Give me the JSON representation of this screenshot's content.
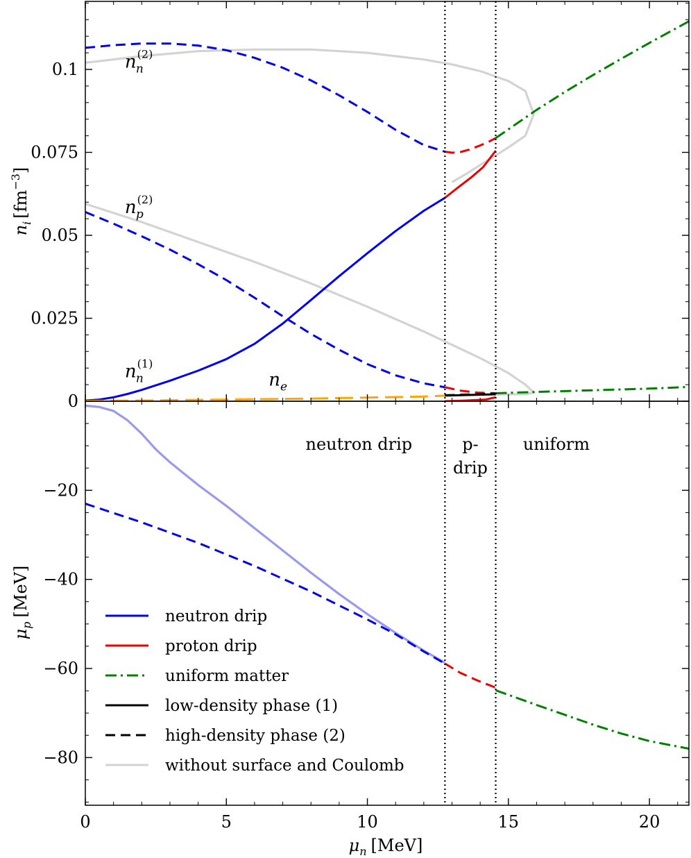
{
  "chart_data": [
    {
      "type": "line",
      "panel": "top",
      "ylabel": "n_i [fm^-3]",
      "ylabel_main": "n",
      "ylabel_sub": "i",
      "ylabel_units": "[fm",
      "ylabel_exp": "−3",
      "ylabel_close": "]",
      "xlim": [
        0,
        21.4
      ],
      "ylim": [
        0,
        0.1205
      ],
      "yticks": [
        0,
        0.025,
        0.05,
        0.075,
        0.1
      ],
      "ytick_labels": [
        "0",
        "0.025",
        "0.05",
        "0.075",
        "0.1"
      ],
      "vlines": [
        12.75,
        14.55
      ],
      "annotations": [
        {
          "id": "nn2",
          "main": "n",
          "sub": "n",
          "sup": "(2)",
          "x": 1.4,
          "y": 0.1005
        },
        {
          "id": "np2",
          "main": "n",
          "sub": "p",
          "sup": "(2)",
          "x": 1.4,
          "y": 0.0567
        },
        {
          "id": "nn1",
          "main": "n",
          "sub": "n",
          "sup": "(1)",
          "x": 1.4,
          "y": 0.0072
        },
        {
          "id": "ne",
          "main": "n",
          "sub": "e",
          "sup": "",
          "x": 6.5,
          "y": 0.0047
        }
      ],
      "series": [
        {
          "name": "n_n^(2) without surface and Coulomb",
          "color": "#d3d3d3",
          "dash": "solid",
          "x": [
            0,
            2,
            4,
            6,
            8,
            10,
            12,
            13,
            14,
            15,
            15.6,
            15.9,
            15.6,
            15,
            14.5,
            14,
            13.5,
            13
          ],
          "y": [
            0.102,
            0.104,
            0.1055,
            0.106,
            0.106,
            0.105,
            0.103,
            0.1015,
            0.0995,
            0.0965,
            0.0935,
            0.0865,
            0.08,
            0.0765,
            0.0738,
            0.0712,
            0.0685,
            0.066
          ]
        },
        {
          "name": "n_p^(2) without surface and Coulomb",
          "color": "#d3d3d3",
          "dash": "solid",
          "x": [
            0,
            2,
            4,
            6,
            8,
            10,
            12,
            14,
            15,
            15.6,
            15.9,
            15.6,
            15,
            14.5
          ],
          "y": [
            0.0595,
            0.054,
            0.048,
            0.042,
            0.0355,
            0.0285,
            0.021,
            0.013,
            0.0085,
            0.005,
            0.0026,
            0.0021,
            0.0021,
            0.002
          ]
        },
        {
          "name": "n_n^(2) neutron drip",
          "color": "#0000ee",
          "dash": "dashed",
          "x": [
            0,
            1,
            2,
            3,
            4,
            5,
            6,
            7,
            8,
            9,
            10,
            11,
            12,
            12.75
          ],
          "y": [
            0.1065,
            0.1073,
            0.1078,
            0.1078,
            0.1072,
            0.1058,
            0.1035,
            0.1005,
            0.0967,
            0.0922,
            0.0872,
            0.0818,
            0.0772,
            0.0752
          ]
        },
        {
          "name": "n_n^(2) proton drip",
          "color": "#ee0000",
          "dash": "dashed",
          "x": [
            12.75,
            13.0,
            13.3,
            13.6,
            14.0,
            14.3,
            14.55
          ],
          "y": [
            0.0752,
            0.0749,
            0.0751,
            0.0758,
            0.0771,
            0.0782,
            0.0793
          ]
        },
        {
          "name": "n_n^(1) neutron drip",
          "color": "#0000ee",
          "dash": "solid",
          "x": [
            0,
            0.5,
            1,
            1.5,
            2,
            3,
            4,
            5,
            6,
            7,
            8,
            9,
            10,
            11,
            12,
            12.75
          ],
          "y": [
            0.0002,
            0.0005,
            0.0012,
            0.0022,
            0.0034,
            0.0062,
            0.0092,
            0.0127,
            0.0173,
            0.0234,
            0.0305,
            0.0377,
            0.0446,
            0.0513,
            0.0574,
            0.0613
          ]
        },
        {
          "name": "n_n^(1) proton drip",
          "color": "#ee0000",
          "dash": "solid",
          "x": [
            12.75,
            13.2,
            13.7,
            14.1,
            14.55
          ],
          "y": [
            0.0613,
            0.0643,
            0.0676,
            0.0705,
            0.0755
          ]
        },
        {
          "name": "n_p^(2) neutron drip",
          "color": "#0000ee",
          "dash": "dashed",
          "x": [
            0,
            1,
            2,
            3,
            4,
            5,
            6,
            7,
            8,
            9,
            10,
            11,
            12,
            12.75
          ],
          "y": [
            0.057,
            0.0535,
            0.0497,
            0.0457,
            0.0413,
            0.0365,
            0.0312,
            0.0256,
            0.0203,
            0.0155,
            0.0112,
            0.0078,
            0.0054,
            0.0042
          ]
        },
        {
          "name": "n_p^(2) proton drip",
          "color": "#ee0000",
          "dash": "dashed",
          "x": [
            12.75,
            13.3,
            13.9,
            14.55
          ],
          "y": [
            0.0042,
            0.0032,
            0.0026,
            0.0024
          ]
        },
        {
          "name": "n_p^(1) proton drip",
          "color": "#ee0000",
          "dash": "solid",
          "x": [
            12.75,
            13.5,
            14.2,
            14.55
          ],
          "y": [
            0.0,
            0.0002,
            0.0005,
            0.0012
          ]
        },
        {
          "name": "n_e",
          "color": "#ffa500",
          "dash": "longdash",
          "x": [
            0,
            2,
            4,
            6,
            8,
            10,
            12,
            12.75
          ],
          "y": [
            0.0001,
            0.0002,
            0.0004,
            0.0006,
            0.0008,
            0.0011,
            0.0014,
            0.0017
          ]
        },
        {
          "name": "n_e low-density phase (1)",
          "color": "#000000",
          "dash": "solid",
          "x": [
            12.75,
            14.55
          ],
          "y": [
            0.0017,
            0.0021
          ]
        },
        {
          "name": "n_e high-density phase (2)",
          "color": "#000000",
          "dash": "dashed",
          "x": [
            12.75,
            14.55
          ],
          "y": [
            0.0018,
            0.0023
          ]
        },
        {
          "name": "n_n uniform matter",
          "color": "#008000",
          "dash": "dashdot",
          "x": [
            14.55,
            16,
            17,
            18,
            19,
            20,
            21.4
          ],
          "y": [
            0.0793,
            0.0878,
            0.0932,
            0.0983,
            0.1032,
            0.108,
            0.1145
          ]
        },
        {
          "name": "n_e uniform matter",
          "color": "#008000",
          "dash": "dashdot",
          "x": [
            14.55,
            16,
            18,
            20,
            21.4
          ],
          "y": [
            0.0024,
            0.0028,
            0.0033,
            0.0038,
            0.0043
          ]
        }
      ]
    },
    {
      "type": "line",
      "panel": "bottom",
      "xlabel": "μ_n [MeV]",
      "xlabel_main": "μ",
      "xlabel_sub": "n",
      "xlabel_units": "[MeV]",
      "ylabel": "μ_p [MeV]",
      "ylabel_main": "μ",
      "ylabel_sub": "p",
      "ylabel_units": "[MeV]",
      "xlim": [
        0,
        21.4
      ],
      "ylim": [
        -90.7,
        0
      ],
      "xticks": [
        0,
        5,
        10,
        15,
        20
      ],
      "xtick_labels": [
        "0",
        "5",
        "10",
        "15",
        "20"
      ],
      "yticks": [
        -20,
        -40,
        -60,
        -80
      ],
      "ytick_labels": [
        "−20",
        "−40",
        "−60",
        "−80"
      ],
      "vlines": [
        12.75,
        14.55
      ],
      "regions": [
        {
          "label": "neutron drip",
          "x": 9.7
        },
        {
          "label": "p-",
          "x": 13.65
        },
        {
          "label": "drip",
          "x": 13.65
        },
        {
          "label": "uniform",
          "x": 16.7
        }
      ],
      "series": [
        {
          "name": "μ_p without surface and Coulomb",
          "color": "#9999ee",
          "dash": "solid",
          "x": [
            0,
            0.5,
            1,
            1.5,
            2,
            2.5,
            3,
            4,
            5,
            6,
            7,
            8,
            9,
            10,
            11,
            12,
            12.75
          ],
          "y": [
            -1,
            -1.3,
            -2.2,
            -4.3,
            -7.3,
            -10.8,
            -13.7,
            -18.8,
            -23.5,
            -28.5,
            -33.5,
            -38.5,
            -43.3,
            -47.8,
            -52,
            -56,
            -58.7
          ]
        },
        {
          "name": "μ_p neutron drip",
          "color": "#0000ee",
          "dash": "dashed",
          "x": [
            0,
            2,
            4,
            6,
            8,
            10,
            11,
            12,
            12.75
          ],
          "y": [
            -23,
            -27.2,
            -31.8,
            -37,
            -42.7,
            -49,
            -52.3,
            -56.2,
            -58.9
          ]
        },
        {
          "name": "μ_p proton drip",
          "color": "#ee0000",
          "dash": "dashed",
          "x": [
            12.75,
            13.3,
            13.9,
            14.55
          ],
          "y": [
            -58.9,
            -61,
            -62.7,
            -64.3
          ]
        },
        {
          "name": "μ_p uniform matter",
          "color": "#008000",
          "dash": "dashdot",
          "x": [
            14.55,
            16,
            17,
            18,
            19,
            20,
            21.4
          ],
          "y": [
            -64.9,
            -68.2,
            -70.4,
            -72.6,
            -74.6,
            -76.3,
            -78
          ]
        }
      ],
      "legend": {
        "placement": "lower-left",
        "entries": [
          {
            "label": "neutron drip",
            "color": "#0000ee",
            "dash": "solid"
          },
          {
            "label": "proton drip",
            "color": "#ee0000",
            "dash": "solid"
          },
          {
            "label": "uniform matter",
            "color": "#008000",
            "dash": "dashdot"
          },
          {
            "label": "low-density phase (1)",
            "color": "#000000",
            "dash": "solid"
          },
          {
            "label": "high-density phase (2)",
            "color": "#000000",
            "dash": "dashed"
          },
          {
            "label": "without surface and Coulomb",
            "color": "#d3d3d3",
            "dash": "solid"
          }
        ]
      }
    }
  ]
}
